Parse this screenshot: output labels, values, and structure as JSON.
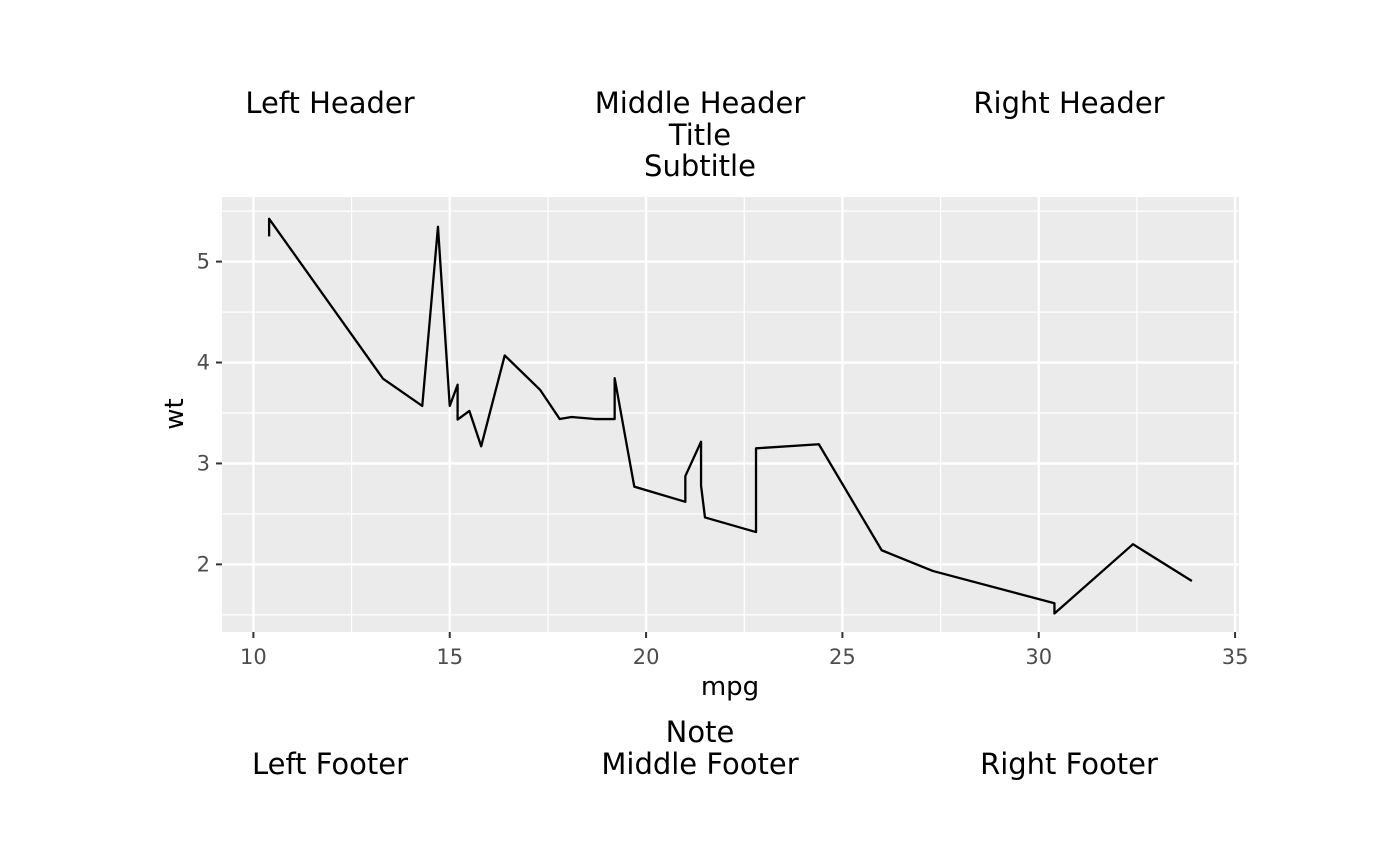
{
  "header": {
    "left": "Left Header",
    "middle": "Middle Header",
    "right": "Right Header"
  },
  "footer": {
    "left": "Left Footer",
    "middle": "Middle Footer",
    "right": "Right Footer"
  },
  "chart_data": {
    "type": "line",
    "title": "Title",
    "subtitle": "Subtitle",
    "caption": "Note",
    "xlabel": "mpg",
    "ylabel": "wt",
    "xlim": [
      9.2,
      35.1
    ],
    "ylim": [
      1.33,
      5.64
    ],
    "x_ticks": [
      10,
      15,
      20,
      25,
      30,
      35
    ],
    "y_ticks": [
      2,
      3,
      4,
      5
    ],
    "x_minor": [
      12.5,
      17.5,
      22.5,
      27.5,
      32.5
    ],
    "y_minor": [
      1.5,
      2.5,
      3.5,
      4.5,
      5.5
    ],
    "grid": true,
    "legend": "none",
    "background": "#ebebeb",
    "line_color": "#000000",
    "series": [
      {
        "x": [
          10.4,
          10.4,
          13.3,
          14.3,
          14.7,
          15.0,
          15.2,
          15.2,
          15.5,
          15.8,
          16.4,
          17.3,
          17.8,
          18.1,
          18.7,
          19.2,
          19.2,
          19.7,
          21.0,
          21.0,
          21.4,
          21.4,
          21.5,
          22.8,
          22.8,
          24.4,
          26.0,
          27.3,
          30.4,
          30.4,
          32.4,
          33.9
        ],
        "y": [
          5.25,
          5.424,
          3.84,
          3.57,
          5.345,
          3.57,
          3.78,
          3.435,
          3.52,
          3.17,
          4.07,
          3.73,
          3.44,
          3.46,
          3.44,
          3.44,
          3.845,
          2.77,
          2.62,
          2.875,
          3.215,
          2.78,
          2.465,
          2.32,
          3.15,
          3.19,
          2.14,
          1.935,
          1.615,
          1.513,
          2.2,
          1.835
        ]
      }
    ]
  }
}
